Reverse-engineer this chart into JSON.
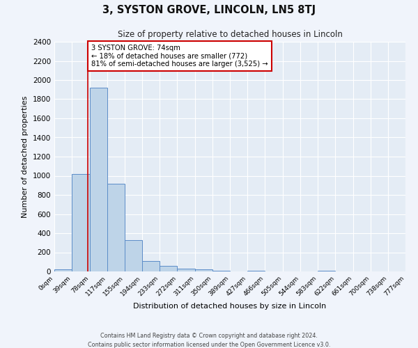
{
  "title": "3, SYSTON GROVE, LINCOLN, LN5 8TJ",
  "subtitle": "Size of property relative to detached houses in Lincoln",
  "xlabel": "Distribution of detached houses by size in Lincoln",
  "ylabel": "Number of detached properties",
  "property_size": 74,
  "bin_edges": [
    0,
    39,
    78,
    117,
    155,
    194,
    233,
    272,
    311,
    350,
    389,
    427,
    466,
    505,
    544,
    583,
    622,
    661,
    700,
    738,
    777
  ],
  "bar_values": [
    20,
    1020,
    1920,
    920,
    325,
    110,
    55,
    30,
    20,
    5,
    0,
    5,
    0,
    0,
    0,
    5,
    0,
    0,
    0,
    0
  ],
  "bar_color": "#bed4e8",
  "bar_edge_color": "#5b8cc8",
  "red_line_color": "#cc0000",
  "annotation_line1": "3 SYSTON GROVE: 74sqm",
  "annotation_line2": "← 18% of detached houses are smaller (772)",
  "annotation_line3": "81% of semi-detached houses are larger (3,525) →",
  "annotation_box_color": "#ffffff",
  "annotation_box_edge": "#cc0000",
  "ylim": [
    0,
    2400
  ],
  "yticks": [
    0,
    200,
    400,
    600,
    800,
    1000,
    1200,
    1400,
    1600,
    1800,
    2000,
    2200,
    2400
  ],
  "footer_line1": "Contains HM Land Registry data © Crown copyright and database right 2024.",
  "footer_line2": "Contains public sector information licensed under the Open Government Licence v3.0.",
  "fig_bg_color": "#f0f4fb",
  "plot_bg_color": "#e4ecf5",
  "grid_color": "#ffffff"
}
